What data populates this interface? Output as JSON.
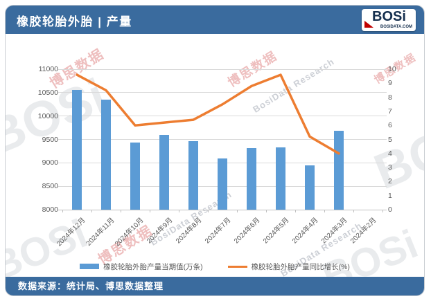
{
  "header": {
    "title": "橡胶轮胎外胎 | 产量",
    "logo": {
      "text": "BOSi",
      "subtext": "BOSIDATA.COM"
    }
  },
  "footer": {
    "source": "数据来源：统计局、博思数据整理"
  },
  "watermark": {
    "cn": "博思数据",
    "en": "BosiData Research",
    "brand": "BOSi"
  },
  "colors": {
    "band_blue": "#3A6B9E",
    "bar_blue": "#5B9BD5",
    "line_orange": "#ED7D31",
    "axis_text": "#595959",
    "gridline": "#D9D9D9",
    "logo_red": "#C00000",
    "logo_navy": "#152F4E"
  },
  "chart_data": {
    "type": "bar+line combo",
    "title": "橡胶轮胎外胎 | 产量",
    "categories": [
      "2024年12月",
      "2024年11月",
      "2024年10月",
      "2024年9月",
      "2024年8月",
      "2024年7月",
      "2024年6月",
      "2024年5月",
      "2024年4月",
      "2024年3月",
      "2024年2月"
    ],
    "series": [
      {
        "name": "橡胶轮胎外胎产量当期值(万条)",
        "type": "bar",
        "axis": "left",
        "color": "#5B9BD5",
        "values": [
          10550,
          10350,
          9430,
          9600,
          9470,
          9100,
          9320,
          9330,
          8950,
          9690,
          null
        ]
      },
      {
        "name": "橡胶轮胎外胎产量同比增长(%)",
        "type": "line",
        "axis": "right",
        "color": "#ED7D31",
        "values": [
          9.6,
          8.5,
          6.0,
          6.2,
          6.4,
          7.5,
          8.8,
          9.6,
          5.2,
          4.0,
          null
        ]
      }
    ],
    "left_axis": {
      "min": 8000,
      "max": 11000,
      "step": 500
    },
    "right_axis": {
      "min": 0,
      "max": 10,
      "step": 1
    },
    "grid": true,
    "legend_position": "bottom"
  }
}
